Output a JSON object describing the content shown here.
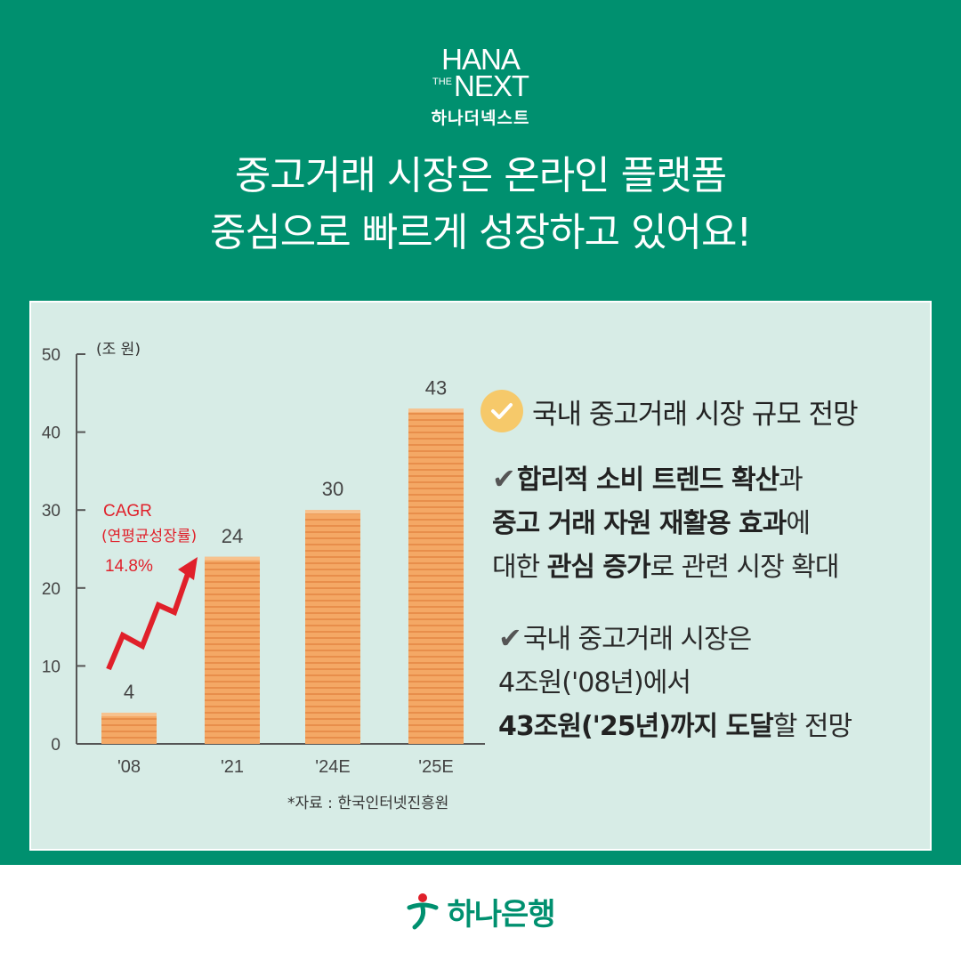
{
  "brand": {
    "line1": "HANA",
    "line2_small": "THE",
    "line2": "NEXT",
    "line3": "하나더넥스트"
  },
  "headline": {
    "line1": "중고거래 시장은 온라인 플랫폼",
    "line2": "중심으로 빠르게 성장하고 있어요!"
  },
  "chart_data": {
    "type": "bar",
    "unit_label": "(조 원)",
    "categories": [
      "'08",
      "'21",
      "'24E",
      "'25E"
    ],
    "values": [
      4,
      24,
      30,
      43
    ],
    "data_labels": [
      "4",
      "24",
      "30",
      "43"
    ],
    "y_ticks": [
      "0",
      "10",
      "20",
      "30",
      "40",
      "50"
    ],
    "ylim": [
      0,
      50
    ],
    "bar_color": "#f4a865",
    "annotation": {
      "line1": "CAGR",
      "line2": "(연평균성장률)",
      "line3": "14.8%",
      "color": "#e0202a"
    },
    "source": "*자료 : 한국인터넷진흥원"
  },
  "right": {
    "title": "국내 중고거래 시장 규모 전망",
    "p1": {
      "a_bold": "합리적 소비 트렌드 확산",
      "a_rest": "과",
      "b_bold": "중고 거래 자원 재활용 효과",
      "b_rest": "에",
      "c_pre": "대한 ",
      "c_bold": "관심 증가",
      "c_rest": "로 관련 시장 확대"
    },
    "p2": {
      "line1": "국내 중고거래 시장은",
      "line2": "4조원('08년)에서",
      "line3_bold": "43조원('25년)까지 도달",
      "line3_rest": "할 전망"
    }
  },
  "footer": {
    "bank": "하나은행"
  },
  "colors": {
    "green": "#00906f",
    "panel": "#d7ece6",
    "check": "#f6c96a"
  }
}
